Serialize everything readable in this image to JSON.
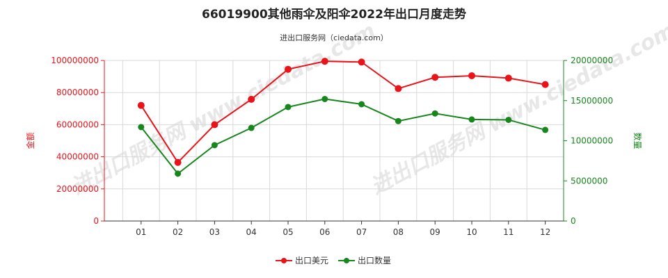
{
  "title": "66019900其他雨伞及阳伞2022年出口月度走势",
  "subtitle": "进出口服务网（ciedata.com）",
  "watermark": "进出口服务网 www.ciedata.com",
  "colors": {
    "value": "#e8141a",
    "quantity": "#17861c",
    "grid": "#d9d9d9"
  },
  "chart_data": {
    "type": "line",
    "categories": [
      "01",
      "02",
      "03",
      "04",
      "05",
      "06",
      "07",
      "08",
      "09",
      "10",
      "11",
      "12"
    ],
    "y_left": {
      "label": "金额",
      "range": [
        0,
        100000000
      ],
      "ticks": [
        "0",
        "20000000",
        "40000000",
        "60000000",
        "80000000",
        "100000000"
      ]
    },
    "y_right": {
      "label": "数量",
      "range": [
        0,
        20000000
      ],
      "ticks": [
        "0",
        "5000000",
        "10000000",
        "15000000",
        "20000000"
      ]
    },
    "grid": true,
    "legend_position": "bottom-center",
    "series": [
      {
        "name": "出口美元",
        "axis": "left",
        "color": "#e8141a",
        "values": [
          72000000,
          36500000,
          60000000,
          75800000,
          94500000,
          99500000,
          99000000,
          82500000,
          89500000,
          90500000,
          89000000,
          85000000
        ]
      },
      {
        "name": "出口数量",
        "axis": "right",
        "color": "#17861c",
        "values": [
          11700000,
          5900000,
          9450000,
          11600000,
          14200000,
          15200000,
          14550000,
          12450000,
          13400000,
          12650000,
          12600000,
          11350000
        ]
      }
    ]
  }
}
